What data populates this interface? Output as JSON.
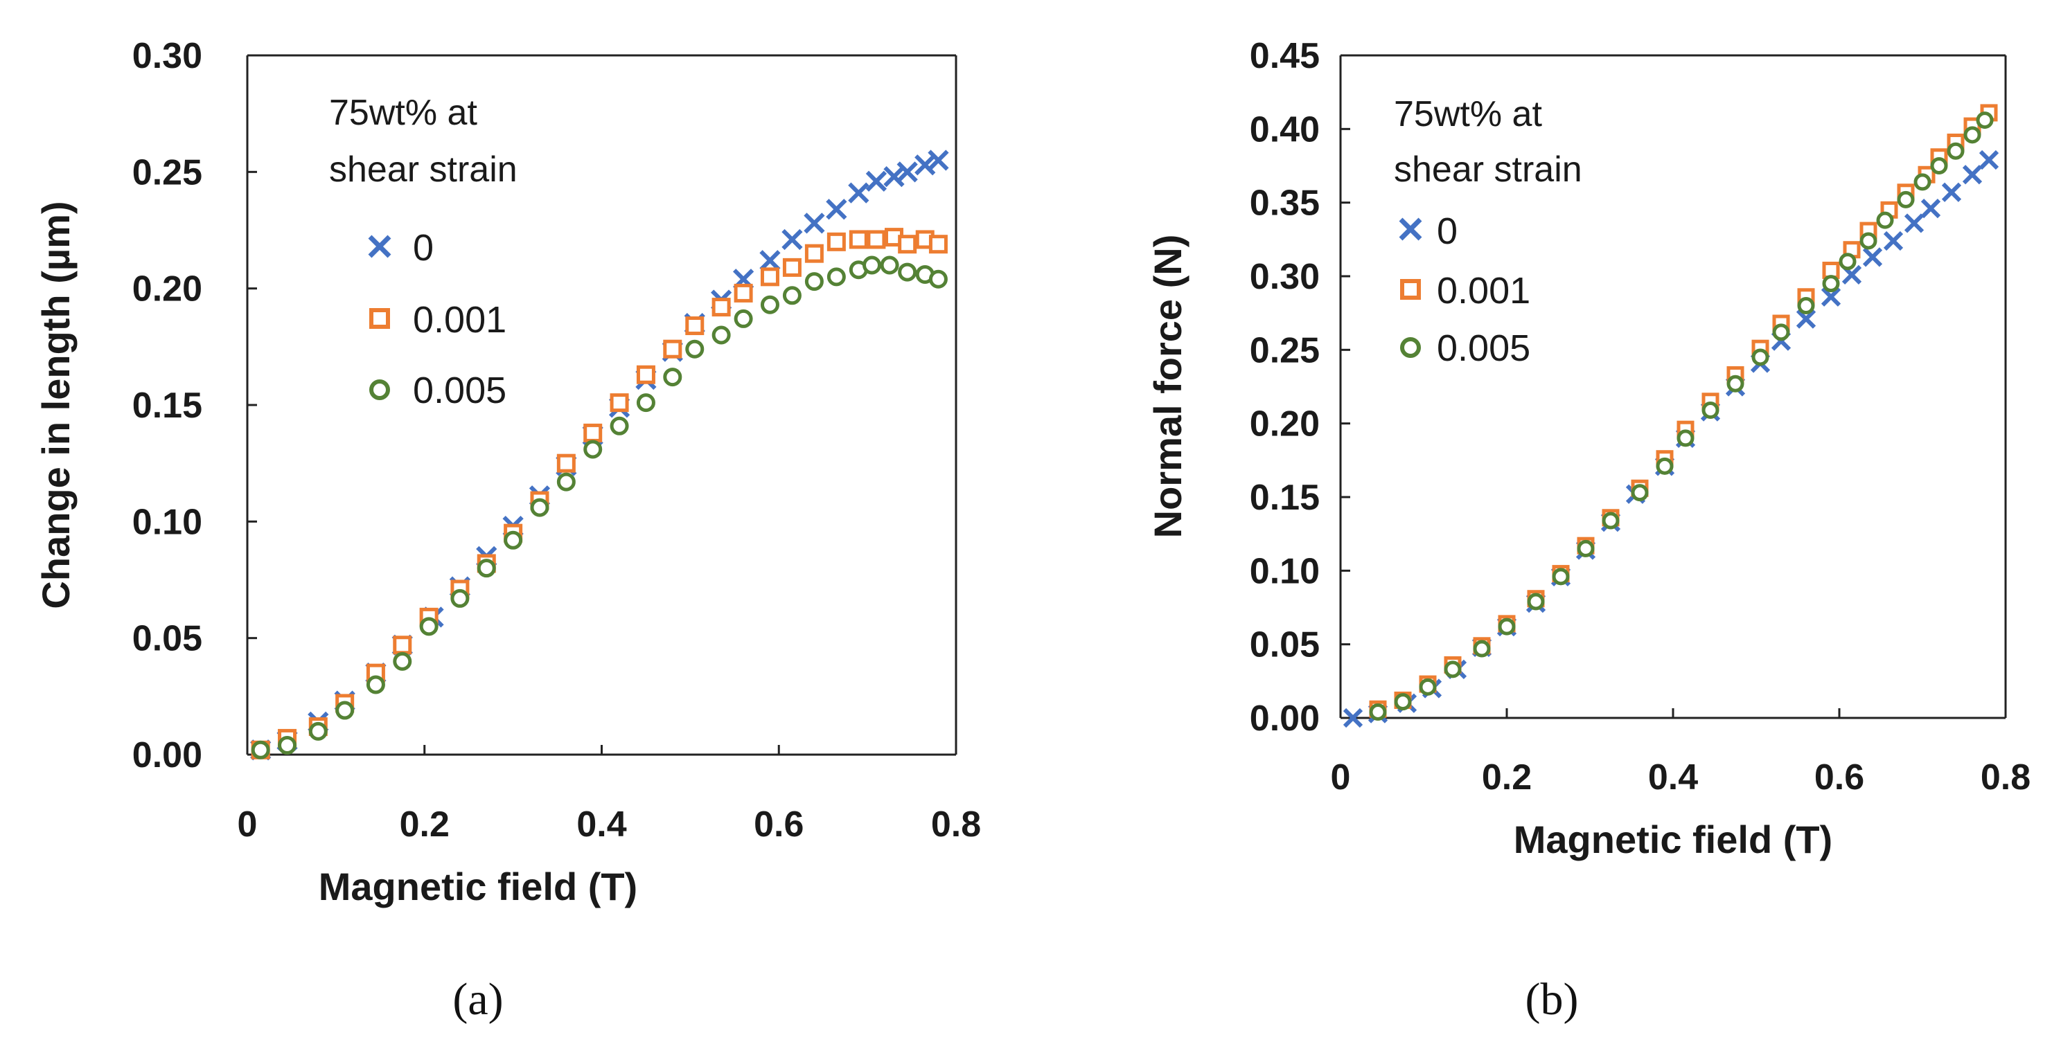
{
  "colors": {
    "s0": "#4472C4",
    "s001": "#ED7D31",
    "s005": "#548235"
  },
  "chart_data": [
    {
      "panel": "(a)",
      "type": "scatter",
      "xlabel": "Magnetic field (T)",
      "ylabel": "Change in length (µm)",
      "xlim": [
        0,
        0.8
      ],
      "ylim": [
        0,
        0.3
      ],
      "xticks": [
        0,
        0.2,
        0.4,
        0.6,
        0.8
      ],
      "xtick_labels": [
        "0",
        "0.2",
        "0.4",
        "0.6",
        "0.8"
      ],
      "yticks": [
        0,
        0.05,
        0.1,
        0.15,
        0.2,
        0.25,
        0.3
      ],
      "ytick_labels": [
        "0.00",
        "0.05",
        "0.10",
        "0.15",
        "0.20",
        "0.25",
        "0.30"
      ],
      "legend_title": [
        "75wt% at",
        "shear strain"
      ],
      "legend_position": "top-left",
      "series": [
        {
          "name": "0",
          "marker": "x",
          "color": "#4472C4",
          "x": [
            0.015,
            0.045,
            0.08,
            0.11,
            0.145,
            0.175,
            0.21,
            0.24,
            0.27,
            0.3,
            0.33,
            0.36,
            0.39,
            0.42,
            0.45,
            0.48,
            0.505,
            0.535,
            0.56,
            0.59,
            0.615,
            0.64,
            0.665,
            0.69,
            0.71,
            0.73,
            0.745,
            0.765,
            0.78
          ],
          "y": [
            0.002,
            0.006,
            0.014,
            0.023,
            0.035,
            0.047,
            0.059,
            0.072,
            0.085,
            0.098,
            0.111,
            0.124,
            0.137,
            0.149,
            0.161,
            0.173,
            0.185,
            0.195,
            0.204,
            0.212,
            0.221,
            0.228,
            0.234,
            0.241,
            0.246,
            0.248,
            0.25,
            0.253,
            0.255
          ]
        },
        {
          "name": "0.001",
          "marker": "square",
          "color": "#ED7D31",
          "x": [
            0.015,
            0.045,
            0.08,
            0.11,
            0.145,
            0.175,
            0.205,
            0.24,
            0.27,
            0.3,
            0.33,
            0.36,
            0.39,
            0.42,
            0.45,
            0.48,
            0.505,
            0.535,
            0.56,
            0.59,
            0.615,
            0.64,
            0.665,
            0.69,
            0.71,
            0.73,
            0.745,
            0.765,
            0.78
          ],
          "y": [
            0.002,
            0.007,
            0.012,
            0.022,
            0.035,
            0.047,
            0.059,
            0.071,
            0.082,
            0.095,
            0.109,
            0.125,
            0.138,
            0.151,
            0.163,
            0.174,
            0.184,
            0.192,
            0.198,
            0.205,
            0.209,
            0.215,
            0.22,
            0.221,
            0.221,
            0.222,
            0.219,
            0.221,
            0.219
          ]
        },
        {
          "name": "0.005",
          "marker": "circle",
          "color": "#548235",
          "x": [
            0.015,
            0.045,
            0.08,
            0.11,
            0.145,
            0.175,
            0.205,
            0.24,
            0.27,
            0.3,
            0.33,
            0.36,
            0.39,
            0.42,
            0.45,
            0.48,
            0.505,
            0.535,
            0.56,
            0.59,
            0.615,
            0.64,
            0.665,
            0.69,
            0.705,
            0.725,
            0.745,
            0.765,
            0.78
          ],
          "y": [
            0.002,
            0.004,
            0.01,
            0.019,
            0.03,
            0.04,
            0.055,
            0.067,
            0.08,
            0.092,
            0.106,
            0.117,
            0.131,
            0.141,
            0.151,
            0.162,
            0.174,
            0.18,
            0.187,
            0.193,
            0.197,
            0.203,
            0.205,
            0.208,
            0.21,
            0.21,
            0.207,
            0.206,
            0.204
          ]
        }
      ]
    },
    {
      "panel": "(b)",
      "type": "scatter",
      "xlabel": "Magnetic field (T)",
      "ylabel": "Normal force (N)",
      "xlim": [
        0,
        0.8
      ],
      "ylim": [
        0,
        0.45
      ],
      "xticks": [
        0,
        0.2,
        0.4,
        0.6,
        0.8
      ],
      "xtick_labels": [
        "0",
        "0.2",
        "0.4",
        "0.6",
        "0.8"
      ],
      "yticks": [
        0,
        0.05,
        0.1,
        0.15,
        0.2,
        0.25,
        0.3,
        0.35,
        0.4,
        0.45
      ],
      "ytick_labels": [
        "0.00",
        "0.05",
        "0.10",
        "0.15",
        "0.20",
        "0.25",
        "0.30",
        "0.35",
        "0.40",
        "0.45"
      ],
      "legend_title": [
        "75wt% at",
        "shear strain"
      ],
      "legend_position": "top-left",
      "series": [
        {
          "name": "0",
          "marker": "x",
          "color": "#4472C4",
          "x": [
            0.015,
            0.045,
            0.08,
            0.11,
            0.14,
            0.17,
            0.2,
            0.235,
            0.265,
            0.295,
            0.325,
            0.355,
            0.39,
            0.415,
            0.445,
            0.475,
            0.505,
            0.53,
            0.56,
            0.59,
            0.615,
            0.64,
            0.665,
            0.69,
            0.71,
            0.735,
            0.76,
            0.78
          ],
          "y": [
            0.0,
            0.003,
            0.01,
            0.02,
            0.033,
            0.048,
            0.062,
            0.078,
            0.096,
            0.114,
            0.133,
            0.152,
            0.171,
            0.19,
            0.208,
            0.225,
            0.241,
            0.256,
            0.271,
            0.286,
            0.301,
            0.313,
            0.324,
            0.336,
            0.346,
            0.357,
            0.369,
            0.379
          ]
        },
        {
          "name": "0.001",
          "marker": "square",
          "color": "#ED7D31",
          "x": [
            0.045,
            0.075,
            0.105,
            0.135,
            0.17,
            0.2,
            0.235,
            0.265,
            0.295,
            0.325,
            0.36,
            0.39,
            0.415,
            0.445,
            0.475,
            0.505,
            0.53,
            0.56,
            0.59,
            0.615,
            0.635,
            0.66,
            0.68,
            0.705,
            0.72,
            0.74,
            0.76,
            0.78
          ],
          "y": [
            0.006,
            0.012,
            0.023,
            0.036,
            0.049,
            0.064,
            0.081,
            0.098,
            0.117,
            0.136,
            0.156,
            0.176,
            0.196,
            0.215,
            0.233,
            0.251,
            0.268,
            0.286,
            0.304,
            0.318,
            0.331,
            0.345,
            0.357,
            0.369,
            0.381,
            0.391,
            0.402,
            0.411
          ]
        },
        {
          "name": "0.005",
          "marker": "circle",
          "color": "#548235",
          "x": [
            0.045,
            0.075,
            0.105,
            0.135,
            0.17,
            0.2,
            0.235,
            0.265,
            0.295,
            0.325,
            0.36,
            0.39,
            0.415,
            0.445,
            0.475,
            0.505,
            0.53,
            0.56,
            0.59,
            0.61,
            0.635,
            0.655,
            0.68,
            0.7,
            0.72,
            0.74,
            0.76,
            0.775
          ],
          "y": [
            0.004,
            0.011,
            0.021,
            0.033,
            0.047,
            0.062,
            0.079,
            0.096,
            0.115,
            0.134,
            0.153,
            0.171,
            0.19,
            0.209,
            0.227,
            0.245,
            0.262,
            0.28,
            0.295,
            0.31,
            0.324,
            0.338,
            0.352,
            0.364,
            0.375,
            0.385,
            0.396,
            0.406
          ]
        }
      ]
    }
  ]
}
